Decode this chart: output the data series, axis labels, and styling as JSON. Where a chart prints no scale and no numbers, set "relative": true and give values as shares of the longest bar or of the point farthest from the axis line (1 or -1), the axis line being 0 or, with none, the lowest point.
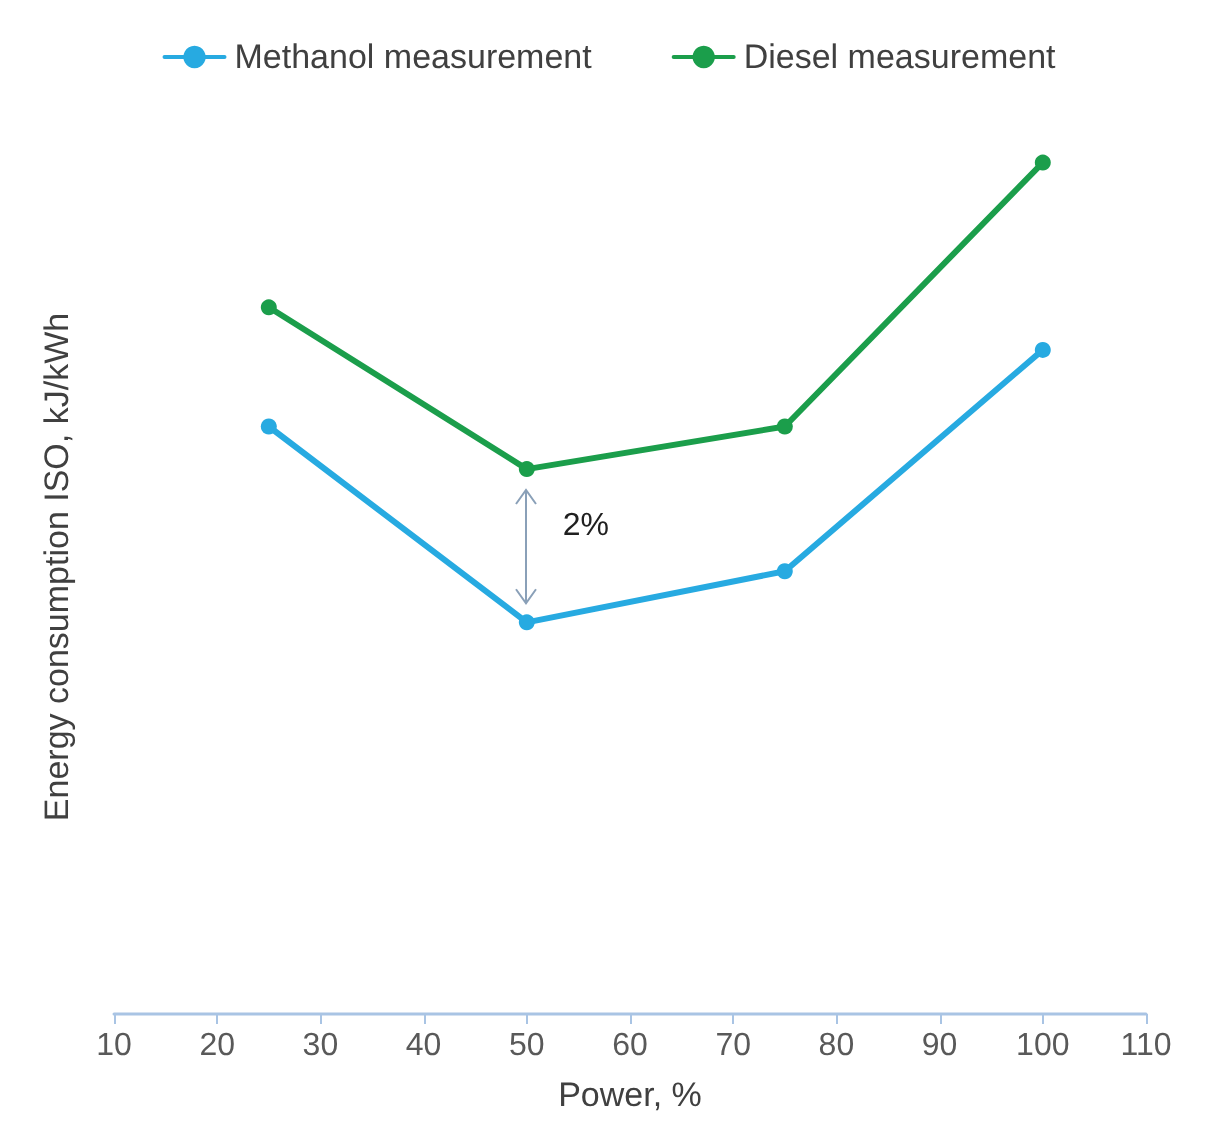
{
  "chart_data": {
    "type": "line",
    "xlabel": "Power, %",
    "ylabel": "Energy consumption ISO, kJ/kWh",
    "x": [
      25,
      50,
      75,
      100
    ],
    "xlim": [
      10,
      110
    ],
    "xticks": [
      10,
      20,
      30,
      40,
      50,
      60,
      70,
      80,
      90,
      100,
      110
    ],
    "relative": true,
    "legend": "top",
    "grid": false,
    "marker": "circle",
    "line_style": "solid",
    "series": [
      {
        "name": "Methanol measurement",
        "color": "#27aae1",
        "values": [
          0.69,
          0.46,
          0.52,
          0.78
        ]
      },
      {
        "name": "Diesel measurement",
        "color": "#1b9e4b",
        "values": [
          0.83,
          0.64,
          0.69,
          1
        ]
      }
    ],
    "annotations": [
      "2%"
    ]
  }
}
